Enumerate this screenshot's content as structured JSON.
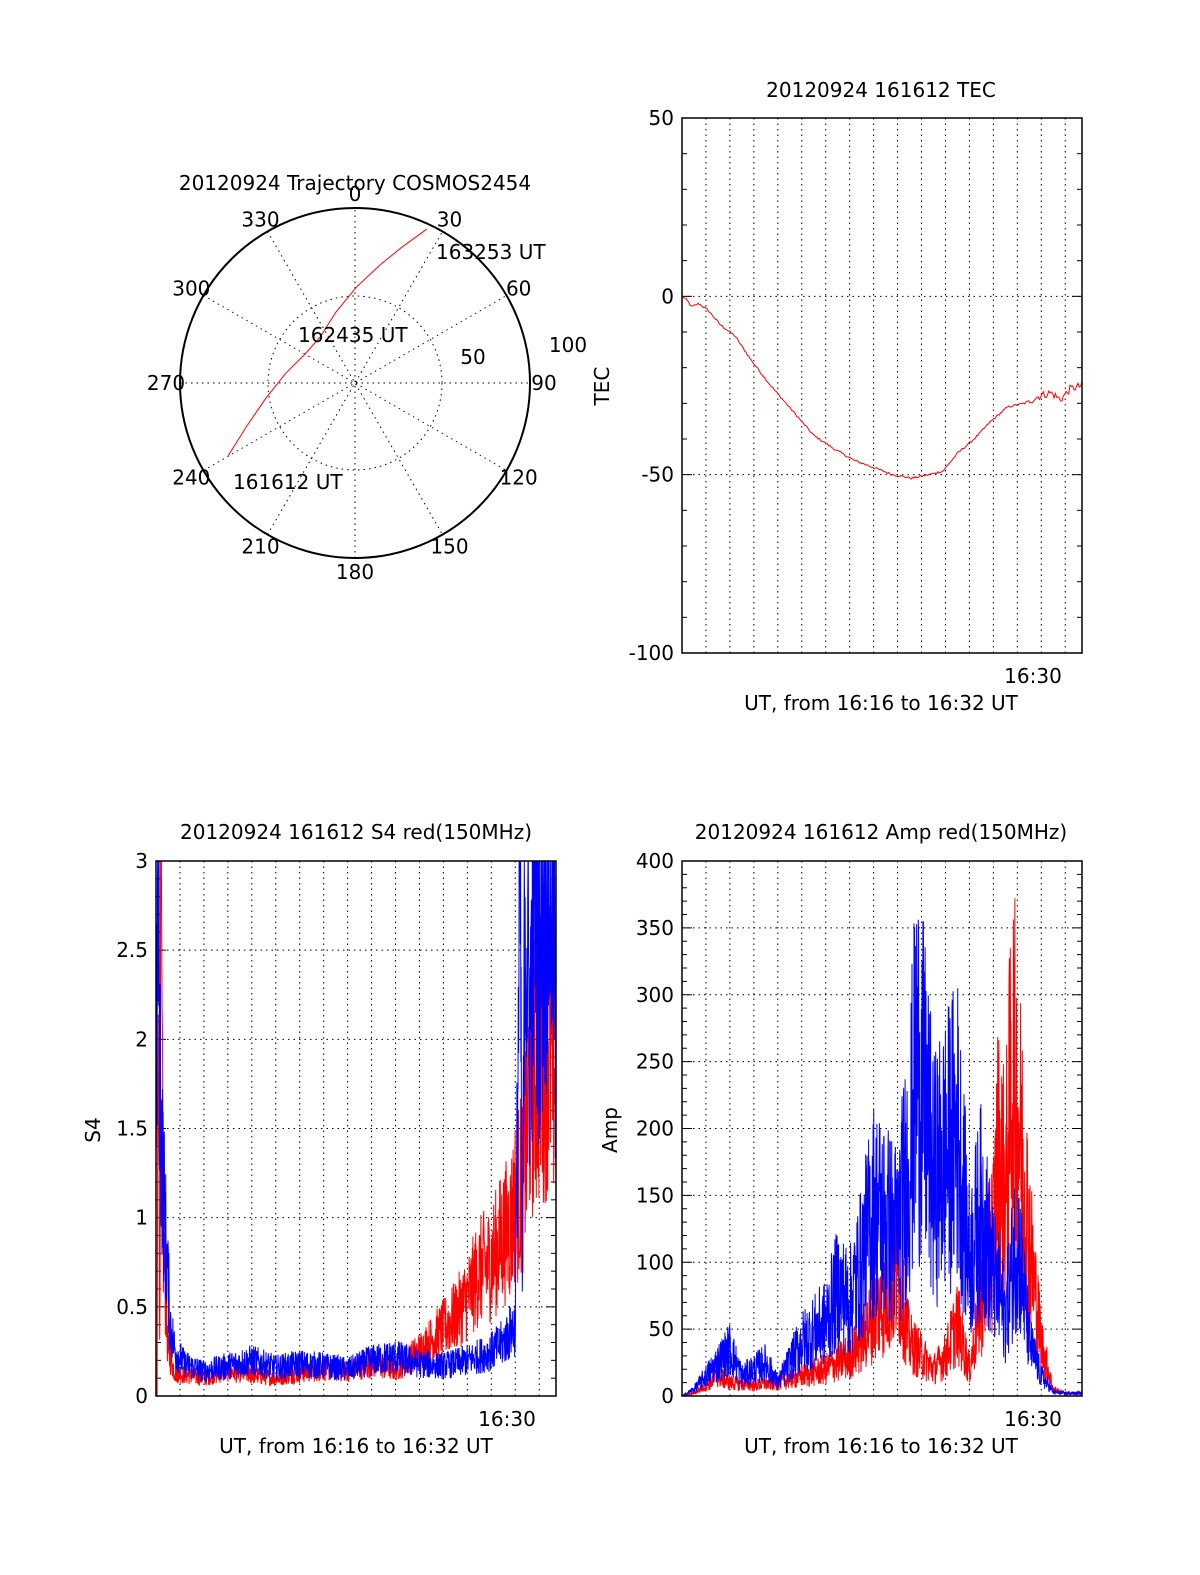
{
  "chart_data": [
    {
      "type": "polar",
      "title": "20120924 Trajectory COSMOS2454",
      "angle_labels": [
        "0",
        "30",
        "60",
        "90",
        "120",
        "150",
        "180",
        "210",
        "240",
        "270",
        "300",
        "330"
      ],
      "radius_labels": [
        "50",
        "100"
      ],
      "series": [
        {
          "color": "#ff0000",
          "points": [
            [
              240,
              84
            ],
            [
              248,
              67
            ],
            [
              260,
              52
            ],
            [
              278,
              40
            ],
            [
              300,
              33
            ],
            [
              323,
              33
            ],
            [
              345,
              42
            ],
            [
              1,
              55
            ],
            [
              12,
              69
            ],
            [
              19,
              82
            ],
            [
              25,
              97
            ]
          ]
        }
      ],
      "annotations": [
        {
          "text": "161612 UT",
          "azimuth": 240,
          "elevation": 84
        },
        {
          "text": "162435 UT",
          "azimuth": 320,
          "elevation": 33
        },
        {
          "text": "163253 UT",
          "azimuth": 25,
          "elevation": 97
        }
      ]
    },
    {
      "type": "line",
      "title": "20120924 161612 TEC",
      "ylabel": "TEC",
      "xlabel": "UT, from 16:16 to 16:32 UT",
      "xlim": [
        0,
        16.7
      ],
      "ylim": [
        -100,
        50
      ],
      "yticks": [
        "50",
        "0",
        "-50",
        "-100"
      ],
      "xtick_label": "16:30",
      "grid": true,
      "series": [
        {
          "color": "#ff0000",
          "x": [
            0.0,
            0.2,
            0.4,
            0.7,
            1.1,
            1.6,
            2.2,
            2.9,
            3.7,
            4.6,
            5.5,
            6.4,
            7.2,
            8.0,
            8.8,
            9.6,
            10.3,
            10.9,
            11.5,
            12.2,
            12.9,
            13.6,
            14.3,
            14.9,
            15.4,
            15.8,
            16.2,
            16.7
          ],
          "y": [
            0,
            -1,
            -3,
            -2,
            -4,
            -8,
            -11,
            -18,
            -25,
            -32,
            -39,
            -43,
            -46,
            -48,
            -50,
            -51,
            -50,
            -49,
            -44,
            -40,
            -35,
            -31,
            -30,
            -28,
            -27,
            -29,
            -26,
            -25
          ]
        }
      ]
    },
    {
      "type": "line",
      "title": "20120924 161612 S4 red(150MHz)",
      "ylabel": "S4",
      "xlabel": "UT, from 16:16 to 16:32 UT",
      "xlim": [
        0,
        16.7
      ],
      "ylim": [
        0,
        3
      ],
      "yticks": [
        "3",
        "2.5",
        "2",
        "1.5",
        "1",
        "0.5",
        "0"
      ],
      "xtick_label": "16:30",
      "grid": true,
      "series": [
        {
          "color": "#ff0000",
          "x": [
            0.05,
            0.1,
            0.15,
            0.2,
            0.3,
            0.5,
            0.8,
            1.2,
            2.0,
            3.0,
            4.0,
            5.0,
            6.0,
            7.0,
            8.0,
            9.0,
            10.0,
            11.0,
            11.8,
            12.5,
            13.0,
            13.5,
            14.0,
            14.5,
            14.8,
            15.0,
            15.3,
            15.6,
            16.0,
            16.4,
            16.7
          ],
          "y": [
            0.0,
            3.0,
            0.1,
            2.8,
            0.9,
            0.25,
            0.13,
            0.12,
            0.1,
            0.14,
            0.12,
            0.1,
            0.13,
            0.15,
            0.14,
            0.18,
            0.15,
            0.25,
            0.35,
            0.45,
            0.55,
            0.7,
            0.75,
            0.9,
            0.95,
            1.1,
            1.2,
            1.7,
            1.9,
            2.0,
            1.8
          ]
        },
        {
          "color": "#0000ff",
          "x": [
            0.0,
            0.1,
            0.2,
            0.4,
            0.6,
            0.8,
            1.2,
            2.0,
            3.0,
            4.0,
            5.0,
            6.0,
            7.0,
            8.0,
            9.0,
            10.0,
            11.0,
            12.0,
            13.0,
            14.0,
            14.5,
            15.0,
            15.2,
            15.3,
            15.4,
            15.6,
            15.8,
            16.0,
            16.3,
            16.6,
            16.7
          ],
          "y": [
            1.5,
            3.0,
            1.5,
            0.9,
            0.4,
            0.25,
            0.18,
            0.14,
            0.17,
            0.2,
            0.16,
            0.18,
            0.17,
            0.15,
            0.2,
            0.22,
            0.18,
            0.17,
            0.2,
            0.25,
            0.3,
            0.4,
            3.0,
            0.5,
            3.0,
            2.0,
            3.0,
            2.5,
            3.0,
            3.0,
            1.5
          ]
        }
      ]
    },
    {
      "type": "line",
      "title": "20120924 161612 Amp red(150MHz)",
      "ylabel": "Amp",
      "xlabel": "UT, from 16:16 to 16:32 UT",
      "xlim": [
        0,
        16.7
      ],
      "ylim": [
        0,
        400
      ],
      "yticks": [
        "400",
        "350",
        "300",
        "250",
        "200",
        "150",
        "100",
        "50",
        "0"
      ],
      "xtick_label": "16:30",
      "grid": true,
      "series": [
        {
          "color": "#ff0000",
          "x": [
            0.0,
            0.5,
            1.0,
            1.5,
            2.0,
            3.0,
            4.0,
            5.0,
            6.0,
            7.0,
            7.5,
            8.0,
            8.5,
            9.0,
            9.5,
            10.0,
            10.5,
            11.0,
            11.5,
            12.0,
            12.5,
            13.0,
            13.2,
            13.5,
            13.8,
            14.2,
            14.6,
            15.0,
            15.5,
            16.0,
            16.7
          ],
          "y": [
            0,
            2,
            8,
            15,
            10,
            8,
            10,
            15,
            20,
            30,
            40,
            60,
            70,
            90,
            40,
            30,
            20,
            30,
            55,
            20,
            70,
            120,
            180,
            150,
            250,
            180,
            100,
            40,
            5,
            2,
            2
          ]
        },
        {
          "color": "#0000ff",
          "x": [
            0.0,
            0.5,
            1.0,
            1.5,
            2.0,
            2.5,
            3.0,
            3.5,
            4.0,
            5.0,
            6.0,
            6.5,
            7.0,
            7.5,
            8.0,
            8.5,
            9.0,
            9.5,
            9.8,
            10.2,
            10.5,
            11.0,
            11.5,
            12.0,
            12.5,
            13.0,
            13.5,
            14.0,
            14.5,
            15.0,
            15.5,
            16.0,
            16.7
          ],
          "y": [
            0,
            5,
            15,
            25,
            35,
            15,
            20,
            25,
            10,
            40,
            55,
            80,
            70,
            100,
            140,
            130,
            120,
            180,
            250,
            210,
            160,
            180,
            200,
            100,
            140,
            90,
            60,
            120,
            40,
            15,
            3,
            2,
            2
          ]
        }
      ]
    }
  ]
}
